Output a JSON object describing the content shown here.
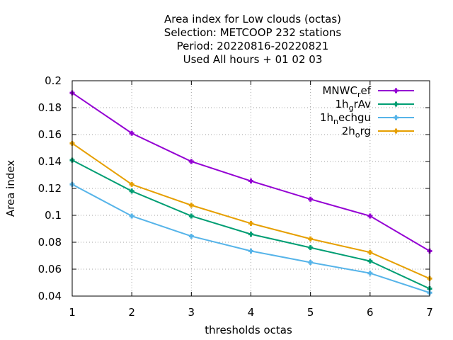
{
  "chart_data": {
    "type": "line",
    "title_lines": [
      "Area index  for Low clouds (octas)",
      "Selection: METCOOP    232 stations",
      "Period: 20220816-20220821",
      "Used  All hours  + 01 02 03"
    ],
    "xlabel": "thresholds octas",
    "ylabel": "Area index",
    "xlim": [
      1,
      7
    ],
    "ylim": [
      0.04,
      0.2
    ],
    "x": [
      1,
      2,
      3,
      4,
      5,
      6,
      7
    ],
    "x_ticks": [
      1,
      2,
      3,
      4,
      5,
      6,
      7
    ],
    "y_ticks": [
      0.04,
      0.06,
      0.08,
      0.1,
      0.12,
      0.14,
      0.16,
      0.18,
      0.2
    ],
    "x_tick_labels": [
      "1",
      "2",
      "3",
      "4",
      "5",
      "6",
      "7"
    ],
    "y_tick_labels": [
      "0.04",
      "0.06",
      "0.08",
      "0.1",
      "0.12",
      "0.14",
      "0.16",
      "0.18",
      "0.2"
    ],
    "grid": true,
    "legend_position": "top-right",
    "series": [
      {
        "name": "MNWC_ref",
        "label_main": "MNWC",
        "label_sub": "r",
        "label_rest": "ef",
        "color": "#9400d3",
        "values": [
          0.191,
          0.161,
          0.14,
          0.1255,
          0.112,
          0.0995,
          0.0735
        ]
      },
      {
        "name": "1h_grAv",
        "label_main": "1h",
        "label_sub": "g",
        "label_rest": "rAv",
        "color": "#009e73",
        "values": [
          0.141,
          0.118,
          0.0995,
          0.086,
          0.076,
          0.066,
          0.0455
        ]
      },
      {
        "name": "1h_nechgu",
        "label_main": "1h",
        "label_sub": "n",
        "label_rest": "echgu",
        "color": "#56b4e9",
        "values": [
          0.123,
          0.0995,
          0.0845,
          0.0735,
          0.065,
          0.057,
          0.0425
        ]
      },
      {
        "name": "2h_org",
        "label_main": "2h",
        "label_sub": "o",
        "label_rest": "rg",
        "color": "#e69f00",
        "values": [
          0.1535,
          0.123,
          0.1075,
          0.094,
          0.0825,
          0.0725,
          0.053
        ]
      }
    ]
  }
}
